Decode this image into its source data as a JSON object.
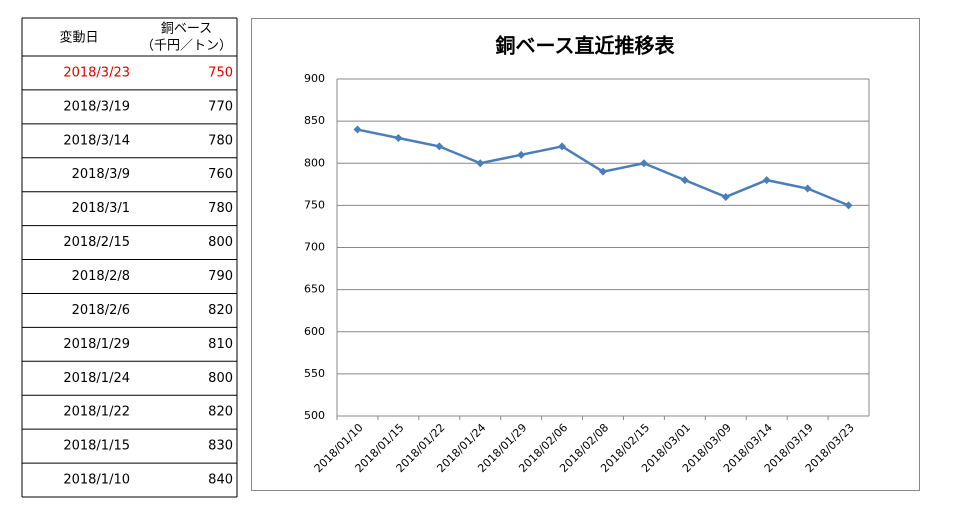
{
  "table": {
    "header": {
      "date": "変動日",
      "price": "銅ベース",
      "unit": "（千円／トン）"
    },
    "rows": [
      [
        "2018/3/23",
        750
      ],
      [
        "2018/3/19",
        770
      ],
      [
        "2018/3/14",
        780
      ],
      [
        "2018/3/9",
        760
      ],
      [
        "2018/3/1",
        780
      ],
      [
        "2018/2/15",
        800
      ],
      [
        "2018/2/8",
        790
      ],
      [
        "2018/2/6",
        820
      ],
      [
        "2018/1/29",
        810
      ],
      [
        "2018/1/24",
        800
      ],
      [
        "2018/1/22",
        820
      ],
      [
        "2018/1/15",
        830
      ],
      [
        "2018/1/10",
        840
      ]
    ]
  },
  "chart_data": {
    "type": "line",
    "title": "銅ベース直近推移表",
    "categories": [
      "2018/01/10",
      "2018/01/15",
      "2018/01/22",
      "2018/01/24",
      "2018/01/29",
      "2018/02/06",
      "2018/02/08",
      "2018/02/15",
      "2018/03/01",
      "2018/03/09",
      "2018/03/14",
      "2018/03/19",
      "2018/03/23"
    ],
    "values": [
      840,
      830,
      820,
      800,
      810,
      820,
      790,
      800,
      780,
      760,
      780,
      770,
      750
    ],
    "color": "#4a7ebb",
    "marker": "diamond",
    "ylim": [
      500,
      900
    ],
    "yticks": [
      500,
      550,
      600,
      650,
      700,
      750,
      800,
      850,
      900
    ],
    "grid": true
  }
}
